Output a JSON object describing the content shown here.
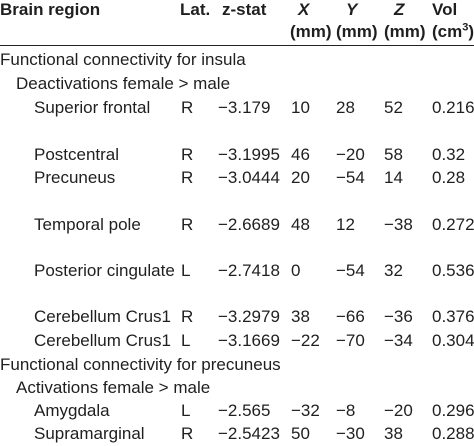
{
  "header": {
    "brain_region": "Brain region",
    "lat": "Lat.",
    "zstat": "z-stat",
    "x": "X",
    "x_unit": "(mm)",
    "y": "Y",
    "y_unit": "(mm)",
    "z": "Z",
    "z_unit": "(mm)",
    "vol": "Vol",
    "vol_unit": "(cm",
    "vol_unit_sup": "3",
    "vol_unit_close": ")"
  },
  "sections": {
    "insula": "Functional connectivity for insula",
    "insula_sub": "Deactivations female > male",
    "precuneus": "Functional connectivity for precuneus",
    "precuneus_sub": "Activations female > male"
  },
  "rows": [
    {
      "region": "Superior frontal",
      "lat": "R",
      "z": "−3.179",
      "x": "10",
      "y": "28",
      "zc": "52",
      "vol": "0.216"
    },
    {
      "region": "Postcentral",
      "lat": "R",
      "z": "−3.1995",
      "x": "46",
      "y": "−20",
      "zc": "58",
      "vol": "0.32"
    },
    {
      "region": "Precuneus",
      "lat": "R",
      "z": "−3.0444",
      "x": "20",
      "y": "−54",
      "zc": "14",
      "vol": "0.28"
    },
    {
      "region": "Temporal pole",
      "lat": "R",
      "z": "−2.6689",
      "x": "48",
      "y": "12",
      "zc": "−38",
      "vol": "0.272"
    },
    {
      "region": "Posterior cingulate",
      "lat": "L",
      "z": "−2.7418",
      "x": "0",
      "y": "−54",
      "zc": "32",
      "vol": "0.536"
    },
    {
      "region": "Cerebellum Crus1",
      "lat": "R",
      "z": "−3.2979",
      "x": "38",
      "y": "−66",
      "zc": "−36",
      "vol": "0.376"
    },
    {
      "region": "Cerebellum Crus1",
      "lat": "L",
      "z": "−3.1669",
      "x": "−22",
      "y": "−70",
      "zc": "−34",
      "vol": "0.304"
    },
    {
      "region": "Amygdala",
      "lat": "L",
      "z": "−2.565",
      "x": "−32",
      "y": "−8",
      "zc": "−20",
      "vol": "0.296"
    },
    {
      "region": "Supramarginal",
      "lat": "R",
      "z": "−2.5423",
      "x": "50",
      "y": "−30",
      "zc": "38",
      "vol": "0.288"
    }
  ]
}
